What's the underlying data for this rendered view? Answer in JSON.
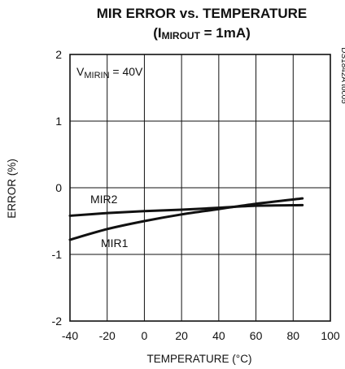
{
  "chart_data": {
    "type": "line",
    "title_line1": "MIR ERROR vs. TEMPERATURE",
    "title_line2_prefix": "(I",
    "title_line2_sub": "MIROUT",
    "title_line2_suffix": " = 1mA)",
    "xlabel": "TEMPERATURE (°C)",
    "ylabel": "ERROR (%)",
    "xlim": [
      -40,
      100
    ],
    "ylim": [
      -2,
      2
    ],
    "x_ticks": [
      -40,
      -20,
      0,
      20,
      40,
      60,
      80,
      100
    ],
    "y_ticks": [
      2,
      1,
      0,
      -1,
      -2
    ],
    "grid": true,
    "annotation": {
      "prefix": "V",
      "sub": "MIRIN",
      "suffix": " = 40V"
    },
    "figure_id": "DS1842A toc05",
    "series": [
      {
        "name": "MIR1",
        "x": [
          -40,
          -20,
          0,
          20,
          40,
          60,
          85
        ],
        "y": [
          -0.78,
          -0.62,
          -0.5,
          -0.4,
          -0.32,
          -0.24,
          -0.16
        ]
      },
      {
        "name": "MIR2",
        "x": [
          -40,
          -20,
          0,
          20,
          40,
          60,
          85
        ],
        "y": [
          -0.42,
          -0.38,
          -0.35,
          -0.33,
          -0.3,
          -0.27,
          -0.26
        ]
      }
    ]
  }
}
